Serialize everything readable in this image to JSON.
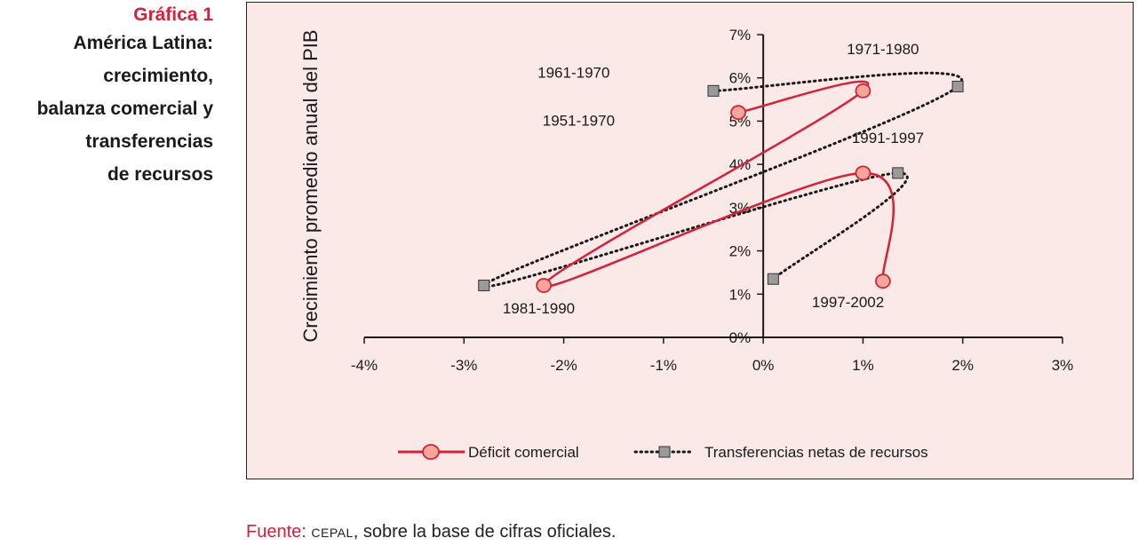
{
  "figure": {
    "label": "Gráfica 1",
    "title_lines": [
      "América Latina:",
      "crecimiento,",
      "balanza comercial y",
      "transferencias",
      "de recursos"
    ]
  },
  "source": {
    "label": "Fuente:",
    "org": "CEPAL",
    "text": ", sobre la base de cifras oficiales."
  },
  "colors": {
    "deficit": "#d6213a",
    "deficit_marker_fill": "#f3a79a",
    "transfers": "#1a1a1a",
    "transfers_marker_fill": "#9a9a9a",
    "panel_bg": "#fae9e7"
  },
  "chart_data": {
    "type": "line",
    "title": "",
    "xlabel": "",
    "ylabel": "Crecimiento promedio anual del PIB",
    "xlim": [
      -4,
      3
    ],
    "ylim": [
      0,
      7
    ],
    "x_ticks": [
      "-4%",
      "-3%",
      "-2%",
      "-1%",
      "0%",
      "1%",
      "2%",
      "3%"
    ],
    "y_ticks": [
      "0%",
      "1%",
      "2%",
      "3%",
      "4%",
      "5%",
      "6%",
      "7%"
    ],
    "series": [
      {
        "name": "Déficit comercial",
        "style": "solid",
        "marker": "circle",
        "points": [
          {
            "x": -0.25,
            "y": 5.2
          },
          {
            "x": 1.0,
            "y": 5.7
          },
          {
            "x": -2.2,
            "y": 1.2
          },
          {
            "x": 1.0,
            "y": 3.8
          },
          {
            "x": 1.2,
            "y": 1.3
          }
        ]
      },
      {
        "name": "Transferencias netas de recursos",
        "style": "dotted",
        "marker": "square",
        "points": [
          {
            "x": -0.5,
            "y": 5.7
          },
          {
            "x": 1.95,
            "y": 5.8
          },
          {
            "x": -2.8,
            "y": 1.2
          },
          {
            "x": 1.35,
            "y": 3.8
          },
          {
            "x": 0.1,
            "y": 1.35
          }
        ]
      }
    ],
    "annotations": [
      {
        "text": "1961-1970",
        "x": -1.9,
        "y": 6.0
      },
      {
        "text": "1951-1970",
        "x": -1.85,
        "y": 4.9
      },
      {
        "text": "1971-1980",
        "x": 1.2,
        "y": 6.55
      },
      {
        "text": "1991-1997",
        "x": 1.25,
        "y": 4.5
      },
      {
        "text": "1981-1990",
        "x": -2.25,
        "y": 0.55
      },
      {
        "text": "1997-2002",
        "x": 0.85,
        "y": 0.7
      }
    ]
  }
}
